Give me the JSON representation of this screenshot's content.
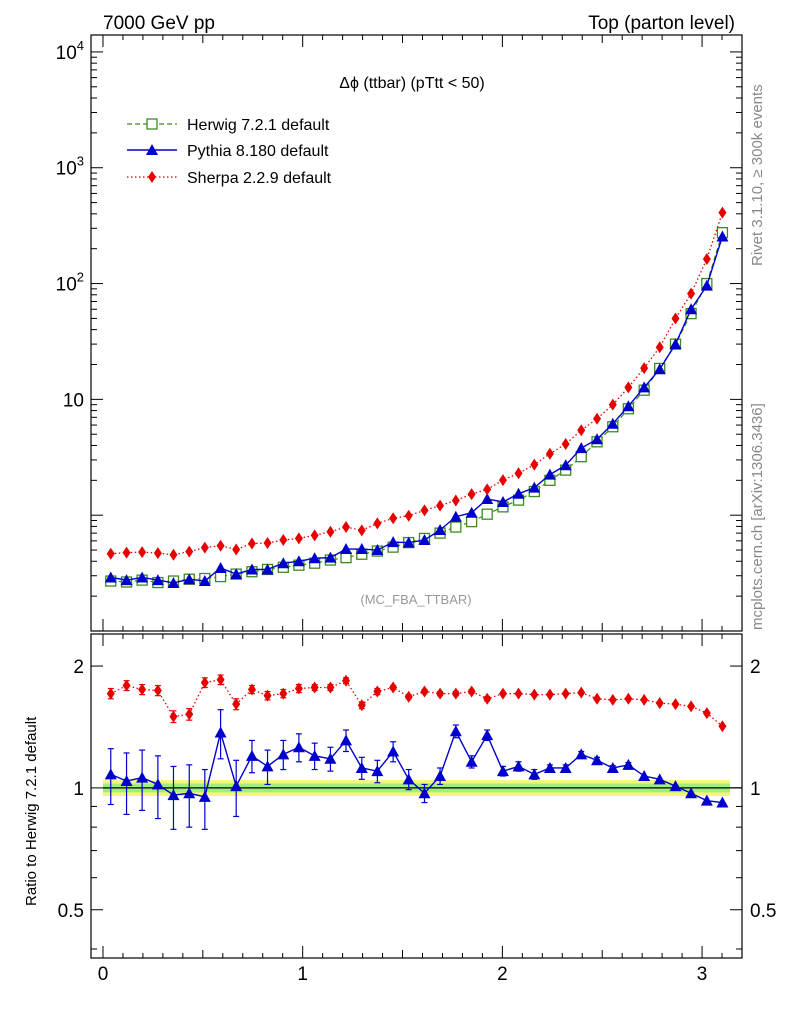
{
  "header": {
    "left": "7000 GeV pp",
    "right": "Top (parton level)"
  },
  "side_labels": {
    "rivet": "Rivet 3.1.10, ≥ 300k events",
    "mcplots": "mcplots.cern.ch [arXiv:1306.3436]"
  },
  "colors": {
    "herwig": "#3a8c1c",
    "pythia": "#0000cc",
    "sherpa": "#e60000",
    "band_outer": "#f5f57a",
    "band_inner": "#9ef07a"
  },
  "chart_data": [
    {
      "type": "scatter",
      "title": "Δϕ (ttbar) (pTtt < 50)",
      "watermark": "(MC_FBA_TTBAR)",
      "yscale": "log",
      "xlim": [
        -0.06,
        3.2
      ],
      "ylim": [
        0.1,
        14000
      ],
      "y_ticks": [
        10,
        100,
        1000,
        10000
      ],
      "y_tick_labels": [
        "10",
        "10^2",
        "10^3",
        "10^4"
      ],
      "legend_position": "top-left",
      "x": [
        0.039,
        0.118,
        0.196,
        0.275,
        0.353,
        0.432,
        0.51,
        0.589,
        0.667,
        0.746,
        0.824,
        0.903,
        0.981,
        1.06,
        1.139,
        1.217,
        1.296,
        1.374,
        1.453,
        1.531,
        1.61,
        1.688,
        1.767,
        1.846,
        1.924,
        2.003,
        2.081,
        2.16,
        2.238,
        2.317,
        2.395,
        2.474,
        2.553,
        2.631,
        2.71,
        2.788,
        2.867,
        2.945,
        3.024,
        3.102
      ],
      "series": [
        {
          "name": "Herwig 7.2.1 default",
          "marker": "open-square",
          "line": "dashed",
          "values": [
            0.27,
            0.265,
            0.275,
            0.262,
            0.27,
            0.28,
            0.284,
            0.295,
            0.31,
            0.325,
            0.34,
            0.355,
            0.37,
            0.385,
            0.41,
            0.43,
            0.46,
            0.49,
            0.53,
            0.58,
            0.63,
            0.7,
            0.79,
            0.88,
            1.02,
            1.18,
            1.35,
            1.6,
            2.0,
            2.45,
            3.2,
            4.3,
            5.8,
            8.3,
            12.0,
            18.5,
            30,
            55,
            100,
            275
          ]
        },
        {
          "name": "Pythia 8.180 default",
          "marker": "filled-triangle",
          "line": "solid",
          "values": [
            0.29,
            0.275,
            0.29,
            0.275,
            0.26,
            0.28,
            0.27,
            0.35,
            0.31,
            0.34,
            0.34,
            0.385,
            0.4,
            0.425,
            0.43,
            0.51,
            0.51,
            0.5,
            0.585,
            0.58,
            0.61,
            0.745,
            0.97,
            1.05,
            1.38,
            1.3,
            1.53,
            1.73,
            2.24,
            2.7,
            3.79,
            4.53,
            6.16,
            8.73,
            12.7,
            18.2,
            30,
            60,
            96,
            255
          ]
        },
        {
          "name": "Sherpa 2.2.9 default",
          "marker": "filled-diamond",
          "line": "dotted",
          "values": [
            0.465,
            0.475,
            0.48,
            0.47,
            0.455,
            0.485,
            0.525,
            0.545,
            0.505,
            0.57,
            0.575,
            0.61,
            0.63,
            0.67,
            0.72,
            0.79,
            0.74,
            0.85,
            0.94,
            0.99,
            1.1,
            1.21,
            1.34,
            1.52,
            1.67,
            2.01,
            2.3,
            2.73,
            3.39,
            4.12,
            5.41,
            6.8,
            9.0,
            12.7,
            18.6,
            28.2,
            49.9,
            81.9,
            163,
            410
          ]
        }
      ]
    },
    {
      "type": "scatter",
      "ylabel": "Ratio to Herwig 7.2.1 default",
      "yscale": "log",
      "xlim": [
        -0.06,
        3.2
      ],
      "ylim": [
        0.38,
        2.4
      ],
      "y_ticks": [
        0.5,
        1,
        2
      ],
      "y_tick_labels": [
        "0.5",
        "1",
        "2"
      ],
      "x_ticks": [
        0,
        1,
        2,
        3
      ],
      "x_tick_labels": [
        "0",
        "1",
        "2",
        "3"
      ],
      "reference_band": {
        "outer": [
          0.955,
          1.045
        ],
        "inner": [
          0.975,
          1.025
        ]
      },
      "series": [
        {
          "name": "Pythia 8.180 default",
          "values": [
            1.08,
            1.04,
            1.06,
            1.02,
            0.96,
            0.97,
            0.95,
            1.37,
            1.01,
            1.2,
            1.13,
            1.21,
            1.26,
            1.2,
            1.18,
            1.31,
            1.12,
            1.1,
            1.23,
            1.05,
            0.97,
            1.07,
            1.38,
            1.16,
            1.35,
            1.1,
            1.13,
            1.08,
            1.12,
            1.12,
            1.21,
            1.17,
            1.12,
            1.14,
            1.07,
            1.05,
            1.01,
            0.97,
            0.93,
            0.92
          ],
          "errors": [
            0.17,
            0.18,
            0.18,
            0.18,
            0.17,
            0.17,
            0.16,
            0.19,
            0.16,
            0.11,
            0.11,
            0.1,
            0.1,
            0.09,
            0.08,
            0.08,
            0.07,
            0.07,
            0.07,
            0.06,
            0.05,
            0.05,
            0.05,
            0.04,
            0.04,
            0.03,
            0.03,
            0.03,
            0.02,
            0.02,
            0.02,
            0.02,
            0.015,
            0.015,
            0.01,
            0.01,
            0.01,
            0.01,
            0.01,
            0.01
          ]
        },
        {
          "name": "Sherpa 2.2.9 default",
          "values": [
            1.71,
            1.79,
            1.75,
            1.74,
            1.5,
            1.52,
            1.82,
            1.85,
            1.61,
            1.75,
            1.69,
            1.71,
            1.76,
            1.77,
            1.77,
            1.84,
            1.6,
            1.73,
            1.77,
            1.68,
            1.73,
            1.71,
            1.71,
            1.73,
            1.66,
            1.71,
            1.71,
            1.7,
            1.7,
            1.71,
            1.72,
            1.66,
            1.65,
            1.66,
            1.65,
            1.62,
            1.61,
            1.59,
            1.53,
            1.42
          ],
          "errors": [
            0.05,
            0.05,
            0.05,
            0.05,
            0.05,
            0.05,
            0.05,
            0.05,
            0.05,
            0.04,
            0.04,
            0.04,
            0.04,
            0.03,
            0.03,
            0.03,
            0.03,
            0.03,
            0.02,
            0.02,
            0.02,
            0.02,
            0.02,
            0.02,
            0.02,
            0.01,
            0.01,
            0.01,
            0.01,
            0.01,
            0.01,
            0.01,
            0.01,
            0.01,
            0.01,
            0.01,
            0.01,
            0.01,
            0.01,
            0.01
          ]
        }
      ]
    }
  ]
}
